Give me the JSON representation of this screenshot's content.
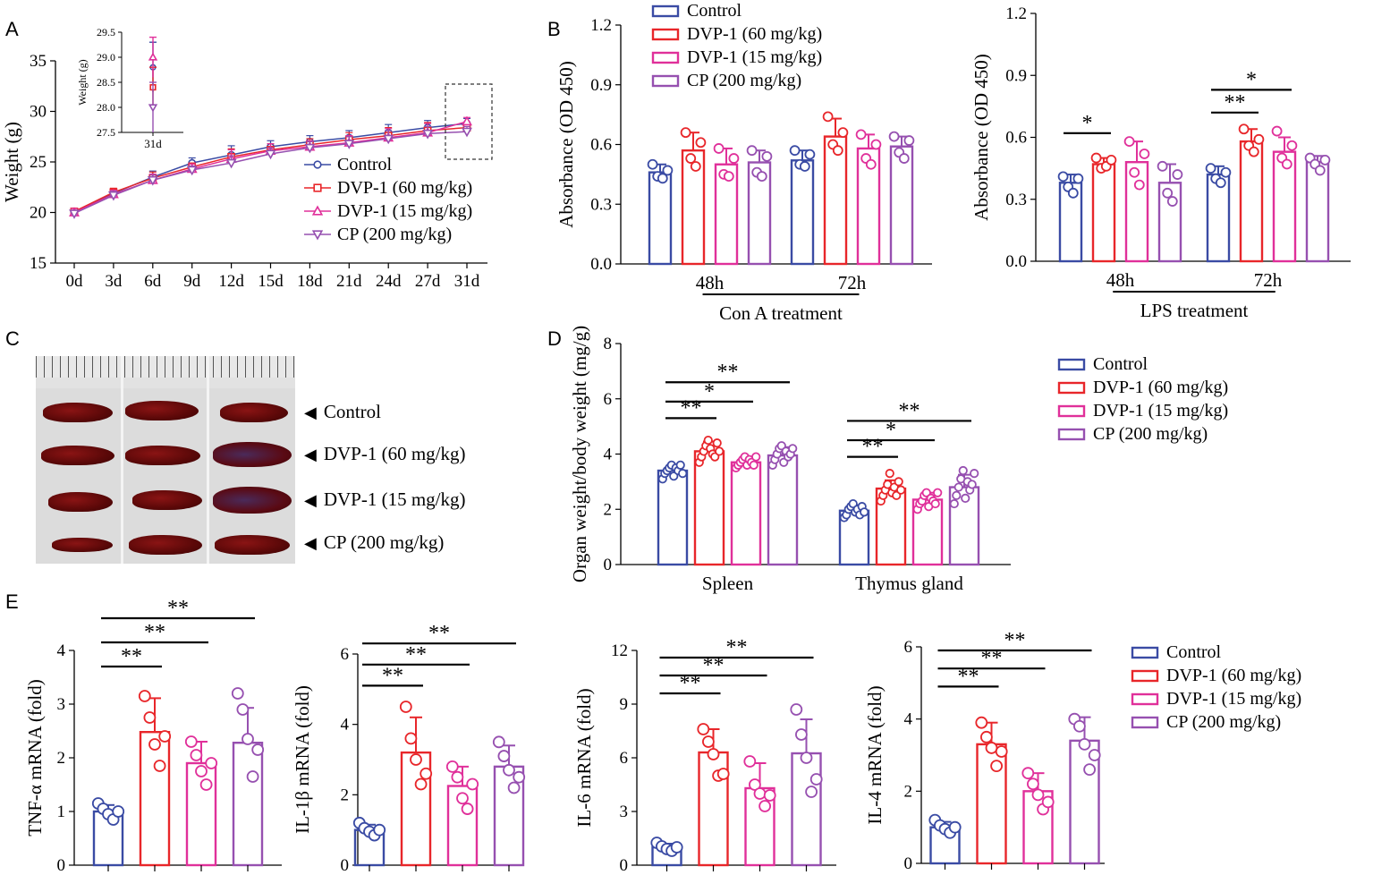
{
  "panel_labels": [
    "A",
    "B",
    "C",
    "D",
    "E"
  ],
  "colors": {
    "Control": "#3a4ba4",
    "DVP-1 (60 mg/kg)": "#e8262a",
    "DVP-1 (15 mg/kg)": "#e0309a",
    "CP (200 mg/kg)": "#9650b0"
  },
  "groups": [
    "Control",
    "DVP-1 (60 mg/kg)",
    "DVP-1 (15 mg/kg)",
    "CP (200 mg/kg)"
  ],
  "photo": {
    "labels": [
      "Control",
      "DVP-1 (60 mg/kg)",
      "DVP-1 (15 mg/kg)",
      "CP (200 mg/kg)"
    ],
    "arrow": "◀"
  },
  "chart_data": [
    {
      "id": "A",
      "type": "line",
      "xlabel": "",
      "ylabel": "Weight (g)",
      "ylim": [
        15,
        35
      ],
      "yticks": [
        "15",
        "20",
        "25",
        "30",
        "35"
      ],
      "categories": [
        "0d",
        "3d",
        "6d",
        "9d",
        "12d",
        "15d",
        "18d",
        "21d",
        "24d",
        "27d",
        "31d"
      ],
      "series": [
        {
          "name": "Control",
          "marker": "circle",
          "values": [
            20.0,
            21.9,
            23.5,
            24.9,
            25.7,
            26.5,
            27.0,
            27.4,
            27.9,
            28.4,
            28.8
          ],
          "err": [
            0.4,
            0.4,
            0.6,
            0.5,
            0.9,
            0.6,
            0.6,
            0.7,
            0.8,
            0.7,
            0.5
          ]
        },
        {
          "name": "DVP-1 (60 mg/kg)",
          "marker": "square",
          "values": [
            20.1,
            22.0,
            23.4,
            24.5,
            25.5,
            26.2,
            26.7,
            27.2,
            27.6,
            28.1,
            28.4
          ],
          "err": [
            0.3,
            0.4,
            0.6,
            0.4,
            0.8,
            0.6,
            0.6,
            0.7,
            0.8,
            0.8,
            0.4
          ]
        },
        {
          "name": "DVP-1 (15 mg/kg)",
          "marker": "triangle",
          "values": [
            20.0,
            21.8,
            23.2,
            24.3,
            25.3,
            26.1,
            26.5,
            26.9,
            27.4,
            27.9,
            29.0
          ],
          "err": [
            0.4,
            0.4,
            0.6,
            0.5,
            0.9,
            0.7,
            0.6,
            0.7,
            0.9,
            0.9,
            0.4
          ]
        },
        {
          "name": "CP (200 mg/kg)",
          "marker": "triangle-down",
          "values": [
            19.9,
            21.7,
            23.2,
            24.2,
            24.9,
            25.8,
            26.4,
            26.8,
            27.3,
            27.8,
            28.0
          ],
          "err": [
            0.3,
            0.4,
            0.5,
            0.4,
            0.7,
            0.6,
            0.6,
            0.7,
            0.8,
            0.7,
            0.5
          ]
        }
      ],
      "inset": {
        "ylabel": "Weight (g)",
        "xlabel": "31d",
        "ylim": [
          27.5,
          29.5
        ],
        "yticks": [
          "27.5",
          "28.0",
          "28.5",
          "29.0",
          "29.5"
        ],
        "values": [
          28.8,
          28.4,
          29.0,
          28.0
        ],
        "err": [
          0.5,
          0.4,
          0.4,
          0.5
        ]
      }
    },
    {
      "id": "B1",
      "type": "bar",
      "ylabel": "Absorbance (OD 450)",
      "ylim": [
        0,
        1.2
      ],
      "yticks": [
        "0.0",
        "0.3",
        "0.6",
        "0.9",
        "1.2"
      ],
      "categories": [
        "48h",
        "72h"
      ],
      "xlabel": "Con A treatment",
      "series": [
        {
          "name": "Control",
          "values": [
            0.46,
            0.52
          ],
          "err": [
            0.04,
            0.05
          ],
          "points": [
            [
              0.5,
              0.44,
              0.43,
              0.47
            ],
            [
              0.57,
              0.5,
              0.49,
              0.55
            ]
          ]
        },
        {
          "name": "DVP-1 (60 mg/kg)",
          "values": [
            0.57,
            0.64
          ],
          "err": [
            0.09,
            0.09
          ],
          "points": [
            [
              0.66,
              0.53,
              0.49,
              0.61
            ],
            [
              0.74,
              0.6,
              0.57,
              0.66
            ]
          ]
        },
        {
          "name": "DVP-1 (15 mg/kg)",
          "values": [
            0.5,
            0.58
          ],
          "err": [
            0.08,
            0.07
          ],
          "points": [
            [
              0.58,
              0.45,
              0.44,
              0.53
            ],
            [
              0.65,
              0.53,
              0.5,
              0.6
            ]
          ]
        },
        {
          "name": "CP (200 mg/kg)",
          "values": [
            0.51,
            0.59
          ],
          "err": [
            0.06,
            0.05
          ],
          "points": [
            [
              0.57,
              0.46,
              0.44,
              0.54
            ],
            [
              0.64,
              0.56,
              0.53,
              0.62
            ]
          ]
        }
      ],
      "significance": []
    },
    {
      "id": "B2",
      "type": "bar",
      "ylabel": "Absorbance (OD 450)",
      "ylim": [
        0,
        1.2
      ],
      "yticks": [
        "0.0",
        "0.3",
        "0.6",
        "0.9",
        "1.2"
      ],
      "categories": [
        "48h",
        "72h"
      ],
      "xlabel": "LPS treatment",
      "series": [
        {
          "name": "Control",
          "values": [
            0.38,
            0.42
          ],
          "err": [
            0.04,
            0.04
          ],
          "points": [
            [
              0.41,
              0.36,
              0.33,
              0.4
            ],
            [
              0.45,
              0.4,
              0.38,
              0.43
            ]
          ]
        },
        {
          "name": "DVP-1 (60 mg/kg)",
          "values": [
            0.47,
            0.58
          ],
          "err": [
            0.03,
            0.06
          ],
          "points": [
            [
              0.5,
              0.45,
              0.46,
              0.49
            ],
            [
              0.64,
              0.56,
              0.53,
              0.59
            ]
          ]
        },
        {
          "name": "DVP-1 (15 mg/kg)",
          "values": [
            0.48,
            0.53
          ],
          "err": [
            0.1,
            0.07
          ],
          "points": [
            [
              0.58,
              0.43,
              0.37,
              0.52
            ],
            [
              0.63,
              0.5,
              0.47,
              0.56
            ]
          ]
        },
        {
          "name": "CP (200 mg/kg)",
          "values": [
            0.38,
            0.48
          ],
          "err": [
            0.09,
            0.03
          ],
          "points": [
            [
              0.46,
              0.33,
              0.29,
              0.42
            ],
            [
              0.5,
              0.47,
              0.44,
              0.49
            ]
          ]
        }
      ],
      "significance": [
        {
          "label": "*",
          "cat": 0,
          "from": 0,
          "to": 1,
          "level": 0.62
        },
        {
          "label": "**",
          "cat": 1,
          "from": 0,
          "to": 1,
          "level": 0.72
        },
        {
          "label": "*",
          "cat": 1,
          "from": 0,
          "to": 2,
          "level": 0.83
        }
      ]
    },
    {
      "id": "D",
      "type": "bar",
      "ylabel": "Organ weight/body weight (mg/g)",
      "ylim": [
        0,
        8
      ],
      "yticks": [
        "0",
        "2",
        "4",
        "6",
        "8"
      ],
      "categories": [
        "Spleen",
        "Thymus gland"
      ],
      "xlabel": "",
      "series": [
        {
          "name": "Control",
          "values": [
            3.4,
            1.95
          ],
          "err": [
            0.2,
            0.2
          ],
          "points": [
            [
              3.1,
              3.3,
              3.4,
              3.5,
              3.6,
              3.2,
              3.5,
              3.4,
              3.6,
              3.3
            ],
            [
              1.7,
              1.8,
              2.0,
              2.1,
              2.2,
              1.9,
              2.0,
              1.8,
              2.1,
              1.9
            ]
          ]
        },
        {
          "name": "DVP-1 (60 mg/kg)",
          "values": [
            4.1,
            2.75
          ],
          "err": [
            0.35,
            0.3
          ],
          "points": [
            [
              3.7,
              3.9,
              4.1,
              4.3,
              4.5,
              4.2,
              4.0,
              3.9,
              4.4,
              4.1
            ],
            [
              2.3,
              2.5,
              2.7,
              2.9,
              3.3,
              2.6,
              2.8,
              2.5,
              3.0,
              2.7
            ]
          ]
        },
        {
          "name": "DVP-1 (15 mg/kg)",
          "values": [
            3.7,
            2.35
          ],
          "err": [
            0.2,
            0.25
          ],
          "points": [
            [
              3.5,
              3.6,
              3.7,
              3.8,
              3.9,
              3.6,
              3.8,
              3.7,
              3.6,
              3.9
            ],
            [
              2.0,
              2.2,
              2.3,
              2.5,
              2.6,
              2.1,
              2.4,
              2.3,
              2.2,
              2.6
            ]
          ]
        },
        {
          "name": "CP (200 mg/kg)",
          "values": [
            3.95,
            2.8
          ],
          "err": [
            0.3,
            0.45
          ],
          "points": [
            [
              3.6,
              3.8,
              4.0,
              4.2,
              4.3,
              3.7,
              4.1,
              3.9,
              4.0,
              4.2
            ],
            [
              2.2,
              2.5,
              2.8,
              3.1,
              3.4,
              2.4,
              3.0,
              2.7,
              2.9,
              3.3
            ]
          ]
        }
      ],
      "significance": [
        {
          "label": "**",
          "cat": 0,
          "from": 0,
          "to": 1,
          "level": 5.3
        },
        {
          "label": "*",
          "cat": 0,
          "from": 0,
          "to": 2,
          "level": 5.9
        },
        {
          "label": "**",
          "cat": 0,
          "from": 0,
          "to": 3,
          "level": 6.6
        },
        {
          "label": "**",
          "cat": 1,
          "from": 0,
          "to": 1,
          "level": 3.9
        },
        {
          "label": "*",
          "cat": 1,
          "from": 0,
          "to": 2,
          "level": 4.5
        },
        {
          "label": "**",
          "cat": 1,
          "from": 0,
          "to": 3,
          "level": 5.2
        }
      ]
    },
    {
      "id": "E1",
      "type": "bar",
      "ylabel": "TNF-α mRNA (fold)",
      "ylim": [
        0,
        4
      ],
      "yticks": [
        "0",
        "1",
        "2",
        "3",
        "4"
      ],
      "categories": [
        ""
      ],
      "xlabel": "",
      "series": [
        {
          "name": "Control",
          "values": [
            1.0
          ],
          "err": [
            0.12
          ],
          "points": [
            [
              1.15,
              1.05,
              0.95,
              0.85,
              1.0
            ]
          ]
        },
        {
          "name": "DVP-1 (60 mg/kg)",
          "values": [
            2.48
          ],
          "err": [
            0.63
          ],
          "points": [
            [
              3.15,
              2.75,
              2.25,
              1.85,
              2.4
            ]
          ]
        },
        {
          "name": "DVP-1 (15 mg/kg)",
          "values": [
            1.9
          ],
          "err": [
            0.4
          ],
          "points": [
            [
              2.3,
              2.05,
              1.75,
              1.5,
              1.9
            ]
          ]
        },
        {
          "name": "CP (200 mg/kg)",
          "values": [
            2.28
          ],
          "err": [
            0.65
          ],
          "points": [
            [
              3.2,
              2.9,
              2.35,
              1.65,
              2.15
            ]
          ]
        }
      ],
      "significance": [
        {
          "label": "**",
          "cat": 0,
          "from": 0,
          "to": 1,
          "level": 3.7
        },
        {
          "label": "**",
          "cat": 0,
          "from": 0,
          "to": 2,
          "level": 4.15
        },
        {
          "label": "**",
          "cat": 0,
          "from": 0,
          "to": 3,
          "level": 4.6
        }
      ]
    },
    {
      "id": "E2",
      "type": "bar",
      "ylabel": "IL-1β mRNA (fold)",
      "ylim": [
        0,
        6
      ],
      "yticks": [
        "0",
        "2",
        "4",
        "6"
      ],
      "categories": [
        ""
      ],
      "xlabel": "",
      "series": [
        {
          "name": "Control",
          "values": [
            1.0
          ],
          "err": [
            0.15
          ],
          "points": [
            [
              1.2,
              1.05,
              0.95,
              0.85,
              1.0
            ]
          ]
        },
        {
          "name": "DVP-1 (60 mg/kg)",
          "values": [
            3.2
          ],
          "err": [
            1.0
          ],
          "points": [
            [
              4.5,
              3.6,
              3.0,
              2.3,
              2.6
            ]
          ]
        },
        {
          "name": "DVP-1 (15 mg/kg)",
          "values": [
            2.25
          ],
          "err": [
            0.55
          ],
          "points": [
            [
              2.8,
              2.5,
              1.9,
              1.6,
              2.3
            ]
          ]
        },
        {
          "name": "CP (200 mg/kg)",
          "values": [
            2.8
          ],
          "err": [
            0.6
          ],
          "points": [
            [
              3.5,
              3.1,
              2.7,
              2.2,
              2.5
            ]
          ]
        }
      ],
      "significance": [
        {
          "label": "**",
          "cat": 0,
          "from": 0,
          "to": 1,
          "level": 5.1
        },
        {
          "label": "**",
          "cat": 0,
          "from": 0,
          "to": 2,
          "level": 5.7
        },
        {
          "label": "**",
          "cat": 0,
          "from": 0,
          "to": 3,
          "level": 6.3
        }
      ]
    },
    {
      "id": "E3",
      "type": "bar",
      "ylabel": "IL-6 mRNA (fold)",
      "ylim": [
        0,
        12
      ],
      "yticks": [
        "0",
        "3",
        "6",
        "9",
        "12"
      ],
      "categories": [
        ""
      ],
      "xlabel": "",
      "series": [
        {
          "name": "Control",
          "values": [
            1.0
          ],
          "err": [
            0.2
          ],
          "points": [
            [
              1.25,
              1.05,
              0.9,
              0.8,
              1.0
            ]
          ]
        },
        {
          "name": "DVP-1 (60 mg/kg)",
          "values": [
            6.3
          ],
          "err": [
            1.3
          ],
          "points": [
            [
              7.6,
              6.9,
              6.2,
              5.0,
              5.1
            ]
          ]
        },
        {
          "name": "DVP-1 (15 mg/kg)",
          "values": [
            4.3
          ],
          "err": [
            1.4
          ],
          "points": [
            [
              5.8,
              4.5,
              4.0,
              3.3,
              3.9
            ]
          ]
        },
        {
          "name": "CP (200 mg/kg)",
          "values": [
            6.25
          ],
          "err": [
            1.9
          ],
          "points": [
            [
              8.7,
              7.3,
              6.0,
              4.1,
              4.8
            ]
          ]
        }
      ],
      "significance": [
        {
          "label": "**",
          "cat": 0,
          "from": 0,
          "to": 1,
          "level": 9.6
        },
        {
          "label": "**",
          "cat": 0,
          "from": 0,
          "to": 2,
          "level": 10.6
        },
        {
          "label": "**",
          "cat": 0,
          "from": 0,
          "to": 3,
          "level": 11.6
        }
      ]
    },
    {
      "id": "E4",
      "type": "bar",
      "ylabel": "IL-4 mRNA (fold)",
      "ylim": [
        0,
        6
      ],
      "yticks": [
        "0",
        "2",
        "4",
        "6"
      ],
      "categories": [
        ""
      ],
      "xlabel": "",
      "series": [
        {
          "name": "Control",
          "values": [
            1.0
          ],
          "err": [
            0.15
          ],
          "points": [
            [
              1.2,
              1.05,
              0.95,
              0.85,
              1.0
            ]
          ]
        },
        {
          "name": "DVP-1 (60 mg/kg)",
          "values": [
            3.3
          ],
          "err": [
            0.6
          ],
          "points": [
            [
              3.9,
              3.5,
              3.2,
              2.7,
              3.1
            ]
          ]
        },
        {
          "name": "DVP-1 (15 mg/kg)",
          "values": [
            2.0
          ],
          "err": [
            0.5
          ],
          "points": [
            [
              2.5,
              2.2,
              1.9,
              1.5,
              1.7
            ]
          ]
        },
        {
          "name": "CP (200 mg/kg)",
          "values": [
            3.4
          ],
          "err": [
            0.65
          ],
          "points": [
            [
              4.0,
              3.8,
              3.3,
              2.6,
              3.0
            ]
          ]
        }
      ],
      "significance": [
        {
          "label": "**",
          "cat": 0,
          "from": 0,
          "to": 1,
          "level": 4.9
        },
        {
          "label": "**",
          "cat": 0,
          "from": 0,
          "to": 2,
          "level": 5.4
        },
        {
          "label": "**",
          "cat": 0,
          "from": 0,
          "to": 3,
          "level": 5.9
        }
      ]
    }
  ]
}
